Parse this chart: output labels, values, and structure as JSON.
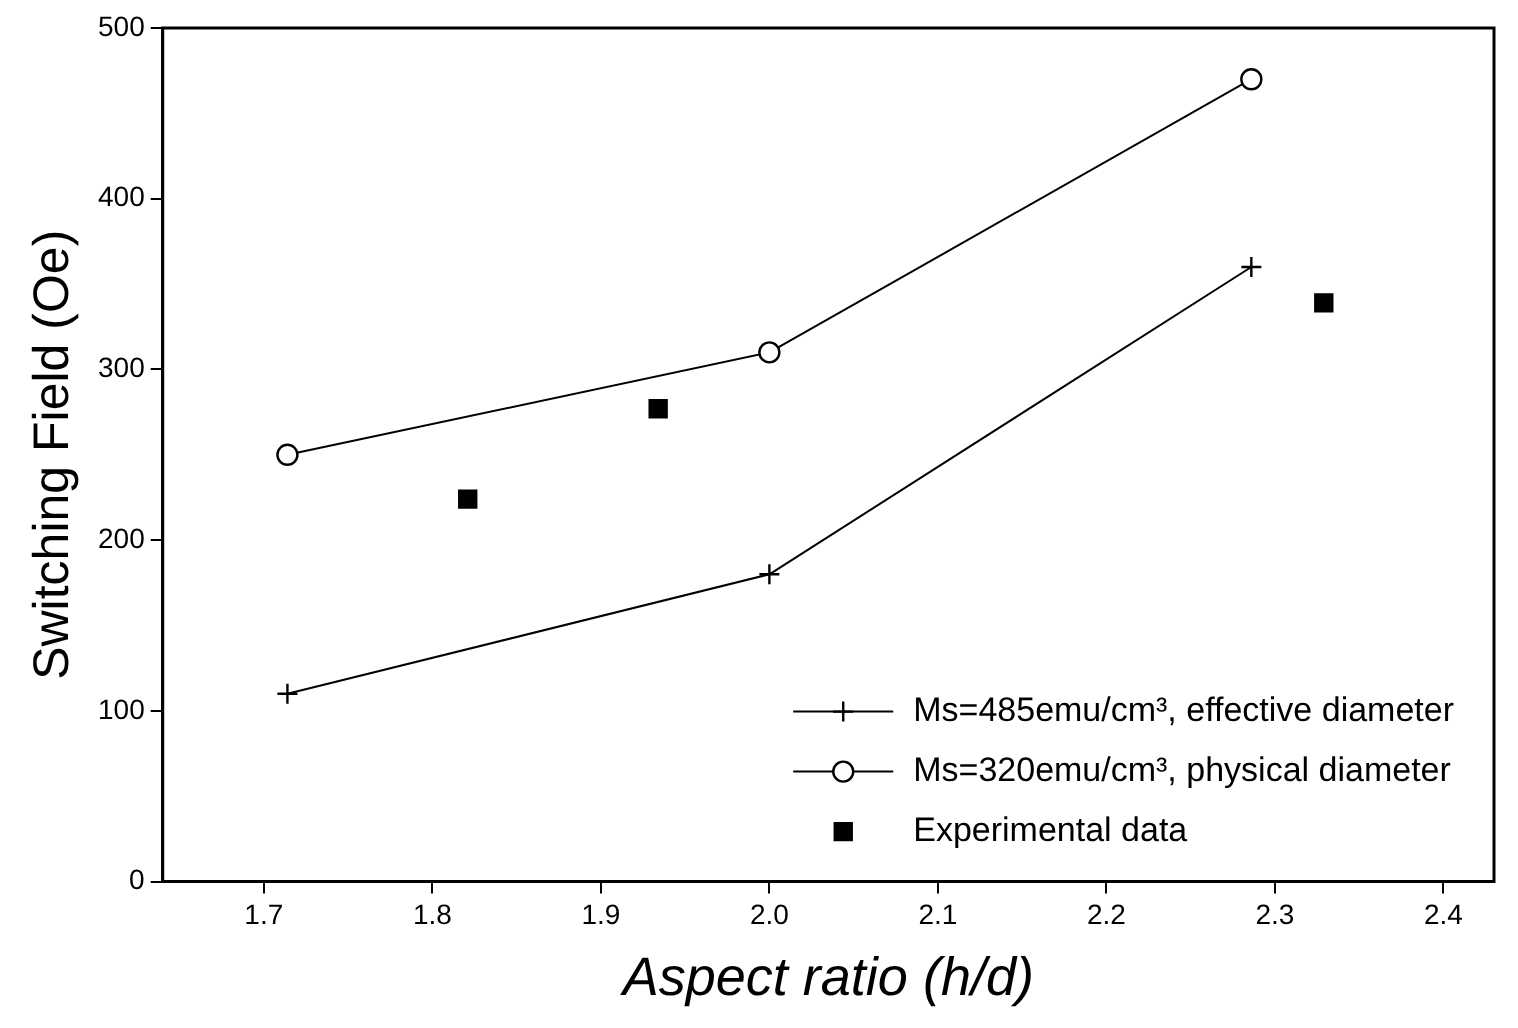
{
  "chart_data": {
    "type": "line",
    "xlabel": "Aspect ratio (h/d)",
    "ylabel": "Switching Field (Oe)",
    "xlim": [
      1.64,
      2.43
    ],
    "xticks": [
      {
        "value": 1.7,
        "label": "1.7"
      },
      {
        "value": 1.8,
        "label": "1.8"
      },
      {
        "value": 1.9,
        "label": "1.9"
      },
      {
        "value": 2.0,
        "label": "2.0"
      },
      {
        "value": 2.1,
        "label": "2.1"
      },
      {
        "value": 2.2,
        "label": "2.2"
      },
      {
        "value": 2.3,
        "label": "2.3"
      },
      {
        "value": 2.4,
        "label": "2.4"
      }
    ],
    "ylim": [
      0,
      500
    ],
    "yticks": [
      0,
      100,
      200,
      300,
      400,
      500
    ],
    "grid": false,
    "legend": "bottom right",
    "series": [
      {
        "name": "Ms=485emu/cm³, effective diameter",
        "type": "line",
        "marker": "cross",
        "color": "#000000",
        "x": [
          1.714,
          2.0,
          2.286
        ],
        "values": [
          110,
          180,
          360
        ]
      },
      {
        "name": "Ms=320emu/cm³, physical diameter",
        "type": "line",
        "marker": "circle",
        "color": "#000000",
        "x": [
          1.714,
          2.0,
          2.286
        ],
        "values": [
          250,
          310,
          470
        ]
      },
      {
        "name": "Experimental data",
        "type": "scatter",
        "marker": "square",
        "color": "#000000",
        "x": [
          1.821,
          1.934,
          2.329
        ],
        "values": [
          224,
          277,
          339
        ]
      }
    ]
  }
}
